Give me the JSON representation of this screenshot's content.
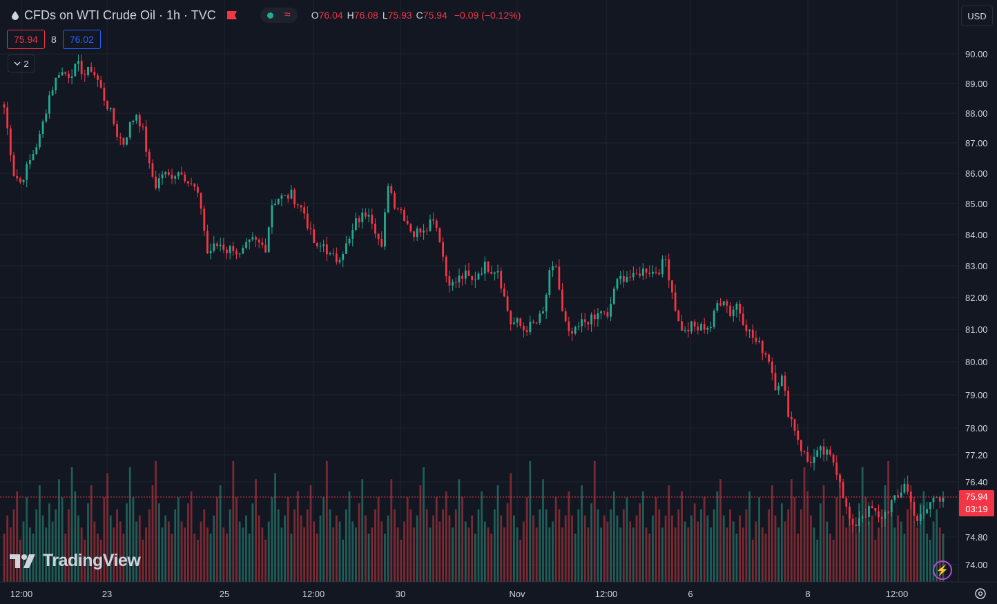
{
  "header": {
    "title": "CFDs on WTI Crude Oil · 1h · TVC",
    "ohlc": [
      {
        "k": "O",
        "v": "76.04"
      },
      {
        "k": "H",
        "v": "76.08"
      },
      {
        "k": "L",
        "v": "75.93"
      },
      {
        "k": "C",
        "v": "75.94"
      }
    ],
    "change": "−0.09 (−0.12%)",
    "bid": "75.94",
    "spread": "8",
    "ask": "76.02",
    "indicators_collapsed": "2"
  },
  "currency": "USD",
  "logo": "TradingView",
  "last_price": {
    "price": "75.94",
    "countdown": "03:19"
  },
  "colors": {
    "background": "#131722",
    "up": "#22ab94",
    "down": "#f23645",
    "grid": "#1f2330",
    "volume_up": "#1e5e56",
    "volume_down": "#7a2a32",
    "ask": "#2962ff"
  },
  "icons": [
    "drop-icon",
    "flag-icon",
    "status-dot-icon",
    "wave-icon",
    "chevron-down-icon",
    "tradingview-logo-icon",
    "lightning-icon",
    "settings-icon"
  ],
  "chart_data": {
    "type": "candlestick",
    "symbol": "CFDs on WTI Crude Oil",
    "interval": "1h",
    "y_ticks": [
      "90.00",
      "89.00",
      "88.00",
      "87.00",
      "86.00",
      "85.00",
      "84.00",
      "83.00",
      "82.00",
      "81.00",
      "80.00",
      "79.00",
      "78.00",
      "77.20",
      "76.40",
      "74.80",
      "74.00"
    ],
    "x_ticks": [
      "12:00",
      "23",
      "25",
      "12:00",
      "30",
      "Nov",
      "12:00",
      "6",
      "8",
      "12:00"
    ],
    "y_range": [
      73.6,
      91.0
    ],
    "series": [
      {
        "t": 0,
        "p": 88.2
      },
      {
        "t": 3,
        "p": 86.0
      },
      {
        "t": 5,
        "p": 85.7
      },
      {
        "t": 8,
        "p": 86.4
      },
      {
        "t": 11,
        "p": 87.2
      },
      {
        "t": 14,
        "p": 88.6
      },
      {
        "t": 17,
        "p": 89.4
      },
      {
        "t": 20,
        "p": 89.3
      },
      {
        "t": 23,
        "p": 89.6
      },
      {
        "t": 25,
        "p": 89.3
      },
      {
        "t": 27,
        "p": 89.5
      },
      {
        "t": 29,
        "p": 89.1
      },
      {
        "t": 31,
        "p": 88.5
      },
      {
        "t": 33,
        "p": 88.0
      },
      {
        "t": 35,
        "p": 87.3
      },
      {
        "t": 37,
        "p": 87.0
      },
      {
        "t": 39,
        "p": 87.6
      },
      {
        "t": 41,
        "p": 88.0
      },
      {
        "t": 43,
        "p": 87.4
      },
      {
        "t": 45,
        "p": 86.2
      },
      {
        "t": 47,
        "p": 85.6
      },
      {
        "t": 49,
        "p": 86.0
      },
      {
        "t": 51,
        "p": 85.9
      },
      {
        "t": 53,
        "p": 86.0
      },
      {
        "t": 55,
        "p": 86.1
      },
      {
        "t": 57,
        "p": 85.7
      },
      {
        "t": 59,
        "p": 85.5
      },
      {
        "t": 61,
        "p": 84.9
      },
      {
        "t": 63,
        "p": 83.4
      },
      {
        "t": 65,
        "p": 83.6
      },
      {
        "t": 67,
        "p": 83.7
      },
      {
        "t": 69,
        "p": 83.5
      },
      {
        "t": 71,
        "p": 83.6
      },
      {
        "t": 73,
        "p": 83.3
      },
      {
        "t": 75,
        "p": 83.6
      },
      {
        "t": 77,
        "p": 83.8
      },
      {
        "t": 79,
        "p": 83.7
      },
      {
        "t": 81,
        "p": 83.6
      },
      {
        "t": 83,
        "p": 85.0
      },
      {
        "t": 85,
        "p": 85.2
      },
      {
        "t": 87,
        "p": 85.2
      },
      {
        "t": 89,
        "p": 85.3
      },
      {
        "t": 91,
        "p": 85.0
      },
      {
        "t": 93,
        "p": 84.7
      },
      {
        "t": 95,
        "p": 84.0
      },
      {
        "t": 97,
        "p": 83.5
      },
      {
        "t": 99,
        "p": 83.7
      },
      {
        "t": 101,
        "p": 83.3
      },
      {
        "t": 103,
        "p": 83.2
      },
      {
        "t": 105,
        "p": 83.5
      },
      {
        "t": 107,
        "p": 83.8
      },
      {
        "t": 109,
        "p": 84.4
      },
      {
        "t": 111,
        "p": 84.6
      },
      {
        "t": 113,
        "p": 84.8
      },
      {
        "t": 115,
        "p": 84.2
      },
      {
        "t": 117,
        "p": 83.5
      },
      {
        "t": 119,
        "p": 85.7
      },
      {
        "t": 121,
        "p": 85.0
      },
      {
        "t": 123,
        "p": 84.8
      },
      {
        "t": 125,
        "p": 84.4
      },
      {
        "t": 127,
        "p": 84.0
      },
      {
        "t": 129,
        "p": 84.2
      },
      {
        "t": 131,
        "p": 84.3
      },
      {
        "t": 133,
        "p": 84.6
      },
      {
        "t": 135,
        "p": 83.9
      },
      {
        "t": 137,
        "p": 82.7
      },
      {
        "t": 139,
        "p": 82.4
      },
      {
        "t": 141,
        "p": 82.6
      },
      {
        "t": 143,
        "p": 82.7
      },
      {
        "t": 145,
        "p": 82.5
      },
      {
        "t": 147,
        "p": 82.8
      },
      {
        "t": 149,
        "p": 83.0
      },
      {
        "t": 151,
        "p": 82.9
      },
      {
        "t": 153,
        "p": 82.9
      },
      {
        "t": 155,
        "p": 82.0
      },
      {
        "t": 157,
        "p": 81.2
      },
      {
        "t": 159,
        "p": 81.2
      },
      {
        "t": 161,
        "p": 81.0
      },
      {
        "t": 163,
        "p": 81.1
      },
      {
        "t": 165,
        "p": 81.2
      },
      {
        "t": 167,
        "p": 81.5
      },
      {
        "t": 169,
        "p": 82.7
      },
      {
        "t": 171,
        "p": 83.0
      },
      {
        "t": 173,
        "p": 81.5
      },
      {
        "t": 175,
        "p": 80.8
      },
      {
        "t": 177,
        "p": 80.9
      },
      {
        "t": 179,
        "p": 81.2
      },
      {
        "t": 181,
        "p": 81.3
      },
      {
        "t": 183,
        "p": 81.3
      },
      {
        "t": 185,
        "p": 81.6
      },
      {
        "t": 187,
        "p": 81.3
      },
      {
        "t": 189,
        "p": 82.3
      },
      {
        "t": 191,
        "p": 82.6
      },
      {
        "t": 193,
        "p": 82.7
      },
      {
        "t": 195,
        "p": 82.6
      },
      {
        "t": 197,
        "p": 82.8
      },
      {
        "t": 199,
        "p": 82.9
      },
      {
        "t": 201,
        "p": 82.8
      },
      {
        "t": 203,
        "p": 82.9
      },
      {
        "t": 205,
        "p": 83.2
      },
      {
        "t": 207,
        "p": 82.2
      },
      {
        "t": 209,
        "p": 81.2
      },
      {
        "t": 211,
        "p": 80.9
      },
      {
        "t": 213,
        "p": 81.1
      },
      {
        "t": 215,
        "p": 81.0
      },
      {
        "t": 217,
        "p": 81.1
      },
      {
        "t": 219,
        "p": 81.1
      },
      {
        "t": 221,
        "p": 81.8
      },
      {
        "t": 223,
        "p": 82.0
      },
      {
        "t": 225,
        "p": 81.5
      },
      {
        "t": 227,
        "p": 81.8
      },
      {
        "t": 229,
        "p": 81.3
      },
      {
        "t": 231,
        "p": 80.9
      },
      {
        "t": 233,
        "p": 80.6
      },
      {
        "t": 235,
        "p": 80.4
      },
      {
        "t": 237,
        "p": 80.1
      },
      {
        "t": 239,
        "p": 79.3
      },
      {
        "t": 241,
        "p": 79.5
      },
      {
        "t": 243,
        "p": 78.5
      },
      {
        "t": 245,
        "p": 78.0
      },
      {
        "t": 247,
        "p": 77.4
      },
      {
        "t": 249,
        "p": 77.0
      },
      {
        "t": 251,
        "p": 77.1
      },
      {
        "t": 253,
        "p": 77.3
      },
      {
        "t": 255,
        "p": 77.2
      },
      {
        "t": 257,
        "p": 77.0
      },
      {
        "t": 259,
        "p": 76.5
      },
      {
        "t": 261,
        "p": 75.6
      },
      {
        "t": 263,
        "p": 75.0
      },
      {
        "t": 265,
        "p": 75.4
      },
      {
        "t": 267,
        "p": 75.5
      },
      {
        "t": 269,
        "p": 75.6
      },
      {
        "t": 271,
        "p": 75.3
      },
      {
        "t": 273,
        "p": 75.5
      },
      {
        "t": 275,
        "p": 75.8
      },
      {
        "t": 277,
        "p": 75.9
      },
      {
        "t": 279,
        "p": 76.4
      },
      {
        "t": 281,
        "p": 75.8
      },
      {
        "t": 283,
        "p": 75.3
      },
      {
        "t": 285,
        "p": 75.4
      },
      {
        "t": 287,
        "p": 75.8
      },
      {
        "t": 289,
        "p": 76.0
      },
      {
        "t": 291,
        "p": 75.94
      }
    ],
    "volume": [
      40,
      55,
      45,
      60,
      75,
      35,
      50,
      70,
      45,
      40,
      60,
      80,
      55,
      45,
      65,
      50,
      60,
      85,
      70,
      40,
      60,
      95,
      75,
      55,
      45,
      35,
      65,
      80,
      50,
      40,
      35,
      70,
      90,
      55,
      45,
      60,
      50,
      40,
      65,
      95,
      70,
      50,
      55,
      35,
      45,
      60,
      80,
      100,
      65,
      45,
      55,
      50,
      40,
      60,
      70,
      50,
      45,
      65,
      75,
      40,
      35,
      50,
      60,
      45,
      40,
      55,
      70,
      80,
      45,
      40,
      60,
      100,
      70,
      50,
      45,
      55,
      40,
      65,
      85,
      55,
      45,
      35,
      50,
      70,
      90,
      60,
      45,
      55,
      70,
      40,
      60,
      75,
      55,
      45,
      60,
      80,
      50,
      40,
      55,
      70,
      100,
      60,
      45,
      55,
      50,
      35,
      60,
      75,
      50,
      45,
      65,
      85,
      55,
      40,
      45,
      60,
      70,
      50,
      40,
      55,
      85,
      60,
      45,
      35,
      50,
      70,
      60,
      45,
      55,
      80,
      95,
      60,
      45,
      55,
      70,
      50,
      60,
      75,
      55,
      45,
      60,
      85,
      70,
      50,
      45,
      55,
      40,
      60,
      75,
      50,
      45,
      40,
      60,
      80,
      55,
      45,
      65,
      90,
      55,
      45,
      35,
      50,
      70,
      100,
      55,
      45,
      60,
      85,
      60,
      45,
      50,
      70,
      60,
      45,
      55,
      75,
      55,
      40,
      60,
      80,
      55,
      45,
      65,
      100,
      60,
      45,
      55,
      50,
      60,
      75,
      55,
      45,
      60,
      70,
      50,
      45,
      55,
      65,
      75,
      45,
      40,
      55,
      70,
      60,
      45,
      55,
      80,
      55,
      45,
      60,
      75,
      50,
      45,
      55,
      65,
      50,
      60,
      70,
      55,
      45,
      60,
      75,
      85,
      55,
      45,
      60,
      50
    ]
  }
}
